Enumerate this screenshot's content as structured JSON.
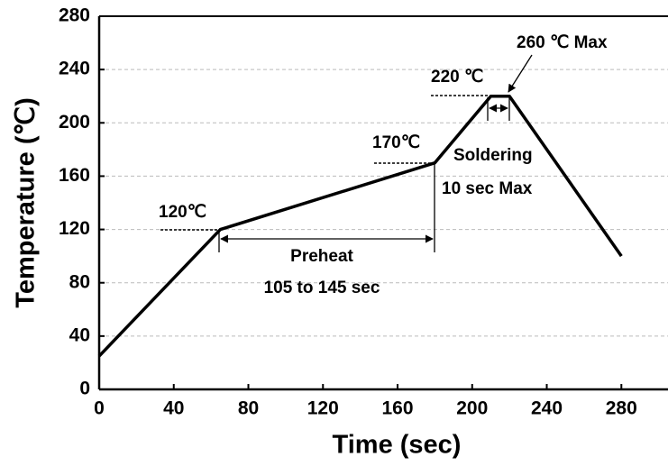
{
  "chart_data": {
    "type": "line",
    "x_label": "Time (sec)",
    "y_label": "Temperature (℃)",
    "x": [
      0,
      65,
      180,
      210,
      220,
      280
    ],
    "values": [
      25,
      120,
      170,
      220,
      220,
      100
    ],
    "color": "#000000",
    "xlim": [
      0,
      305
    ],
    "xticks": [
      0,
      40,
      80,
      120,
      160,
      200,
      240,
      280
    ],
    "ylim": [
      0,
      280
    ],
    "yticks": [
      0,
      40,
      80,
      120,
      160,
      200,
      240,
      280
    ],
    "grid": true,
    "annotations": [
      "120℃",
      "170℃",
      "220 ℃",
      "260 ℃ Max",
      "Soldering",
      "10 sec Max",
      "Preheat",
      "105 to 145 sec"
    ]
  }
}
